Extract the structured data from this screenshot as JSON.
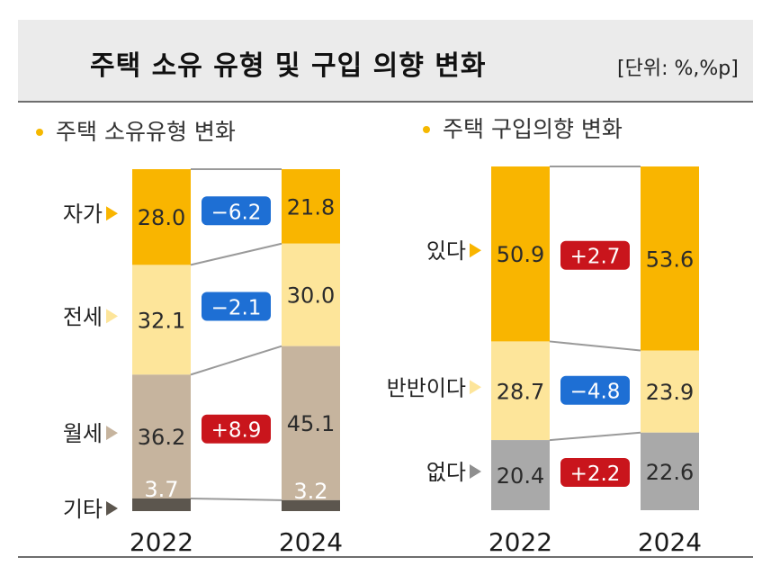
{
  "title": "주택 소유 유형 및 구입 의향 변화",
  "unit": "[단위: %,%p]",
  "colors": {
    "yellow": "#f9b500",
    "light_yellow": "#fde59a",
    "taupe": "#c6b49e",
    "dark": "#5c564e",
    "gray": "#a9a9a9",
    "blue": "#1e6fd4",
    "red": "#c9151c"
  },
  "chart_data": [
    {
      "type": "bar",
      "stacked": true,
      "subtitle": "주택 소유유형 변화",
      "categories": [
        "2022",
        "2024"
      ],
      "series": [
        {
          "name": "자가",
          "values": [
            28.0,
            21.8
          ],
          "change": "−6.2",
          "color": "yellow",
          "badge": "blue"
        },
        {
          "name": "전세",
          "values": [
            32.1,
            30.0
          ],
          "change": "−2.1",
          "color": "light_yellow",
          "badge": "blue"
        },
        {
          "name": "월세",
          "values": [
            36.2,
            45.1
          ],
          "change": "+8.9",
          "color": "taupe",
          "badge": "red"
        },
        {
          "name": "기타",
          "values": [
            3.7,
            3.2
          ],
          "change": "",
          "color": "dark",
          "badge": ""
        }
      ]
    },
    {
      "type": "bar",
      "stacked": true,
      "subtitle": "주택 구입의향 변화",
      "categories": [
        "2022",
        "2024"
      ],
      "series": [
        {
          "name": "있다",
          "values": [
            50.9,
            53.6
          ],
          "change": "+2.7",
          "color": "yellow",
          "badge": "red"
        },
        {
          "name": "반반이다",
          "values": [
            28.7,
            23.9
          ],
          "change": "−4.8",
          "color": "light_yellow",
          "badge": "blue"
        },
        {
          "name": "없다",
          "values": [
            20.4,
            22.6
          ],
          "change": "+2.2",
          "color": "gray",
          "badge": "red"
        }
      ]
    }
  ]
}
